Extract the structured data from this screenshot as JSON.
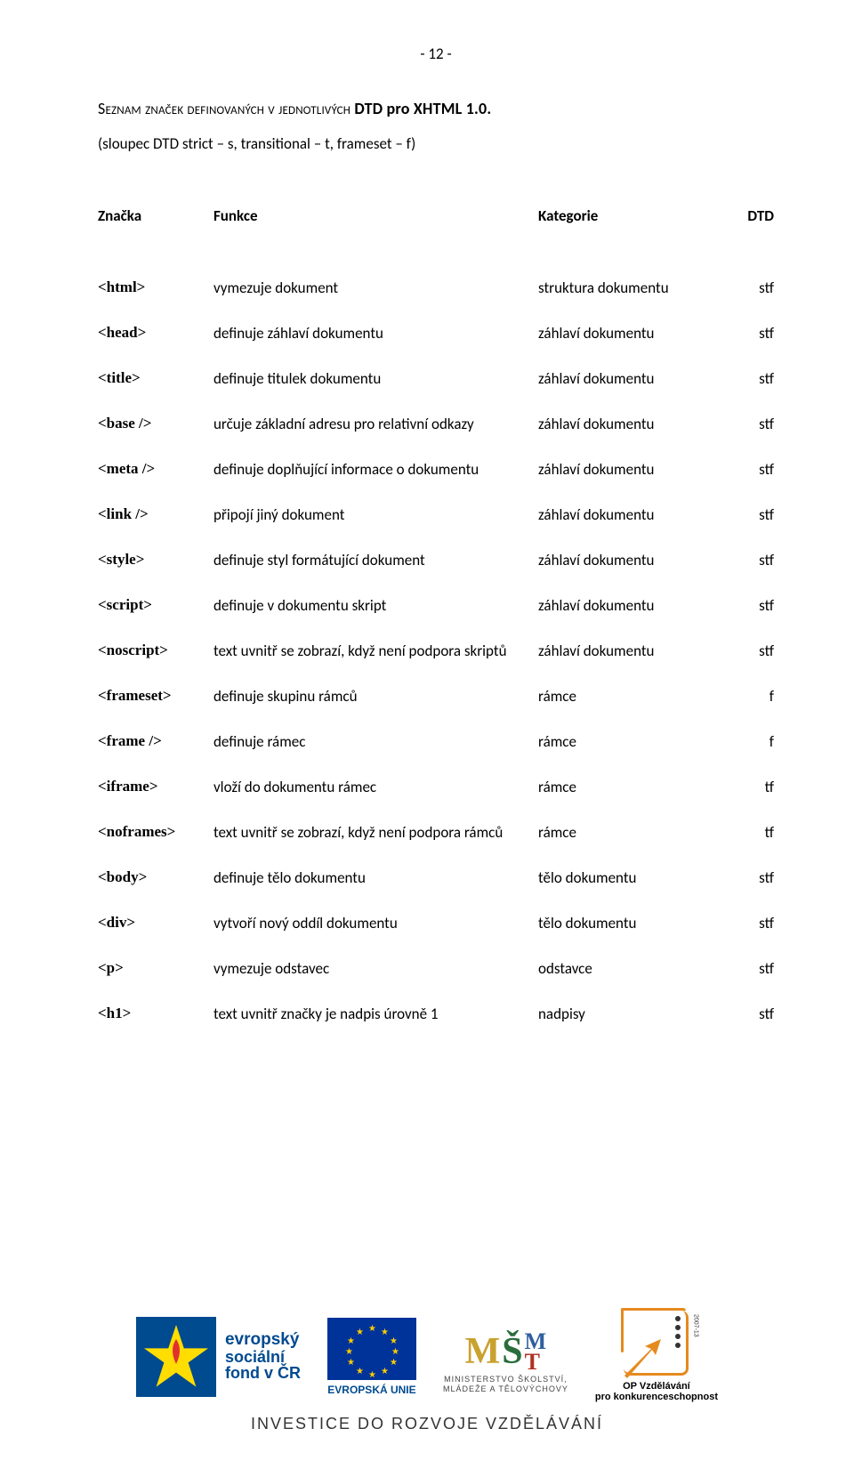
{
  "page_number": "- 12 -",
  "title_prefix": "Seznam značek definovaných v jednotlivých ",
  "title_bold": "DTD pro XHTML 1.0.",
  "subtitle": "(sloupec DTD strict – s, transitional – t, frameset – f)",
  "headers": {
    "tag": "Značka",
    "func": "Funkce",
    "cat": "Kategorie",
    "dtd": "DTD"
  },
  "rows": [
    {
      "tag": "<html>",
      "func": "vymezuje dokument",
      "cat": "struktura dokumentu",
      "dtd": "stf"
    },
    {
      "tag": "<head>",
      "func": "definuje záhlaví dokumentu",
      "cat": "záhlaví dokumentu",
      "dtd": "stf"
    },
    {
      "tag": "<title>",
      "func": "definuje titulek dokumentu",
      "cat": "záhlaví dokumentu",
      "dtd": "stf"
    },
    {
      "tag": "<base />",
      "func": "určuje základní adresu pro relativní odkazy",
      "cat": "záhlaví dokumentu",
      "dtd": "stf"
    },
    {
      "tag": "<meta />",
      "func": "definuje doplňující informace o dokumentu",
      "cat": "záhlaví dokumentu",
      "dtd": "stf"
    },
    {
      "tag": "<link />",
      "func": "připojí jiný dokument",
      "cat": "záhlaví dokumentu",
      "dtd": "stf"
    },
    {
      "tag": "<style>",
      "func": "definuje styl formátující dokument",
      "cat": "záhlaví dokumentu",
      "dtd": "stf"
    },
    {
      "tag": "<script>",
      "func": "definuje v dokumentu skript",
      "cat": "záhlaví dokumentu",
      "dtd": "stf"
    },
    {
      "tag": "<noscript>",
      "func": "text uvnitř se zobrazí, když není podpora skriptů",
      "cat": "záhlaví dokumentu",
      "dtd": "stf"
    },
    {
      "tag": "<frameset>",
      "func": "definuje skupinu rámců",
      "cat": "rámce",
      "dtd": "f"
    },
    {
      "tag": "<frame />",
      "func": "definuje rámec",
      "cat": "rámce",
      "dtd": "f"
    },
    {
      "tag": "<iframe>",
      "func": "vloží do dokumentu rámec",
      "cat": "rámce",
      "dtd": "tf"
    },
    {
      "tag": "<noframes>",
      "func": "text uvnitř se zobrazí, když není podpora rámců",
      "cat": "rámce",
      "dtd": "tf"
    },
    {
      "tag": "<body>",
      "func": "definuje tělo dokumentu",
      "cat": "tělo dokumentu",
      "dtd": "stf"
    },
    {
      "tag": "<div>",
      "func": "vytvoří nový oddíl dokumentu",
      "cat": "tělo dokumentu",
      "dtd": "stf"
    },
    {
      "tag": "<p>",
      "func": "vymezuje odstavec",
      "cat": "odstavce",
      "dtd": "stf"
    },
    {
      "tag": "<h1>",
      "func": "text uvnitř značky je nadpis úrovně 1",
      "cat": "nadpisy",
      "dtd": "stf"
    }
  ],
  "footer": {
    "esf": {
      "l1": "evropský",
      "l2": "sociální",
      "l3": "fond v ČR"
    },
    "eu_label": "EVROPSKÁ UNIE",
    "msmt_line1": "MINISTERSTVO ŠKOLSTVÍ,",
    "msmt_line2": "MLÁDEŽE A TĚLOVÝCHOVY",
    "opvk_line1": "OP Vzdělávání",
    "opvk_line2": "pro konkurenceschopnost",
    "opvk_years": "2007-13",
    "invest": "INVESTICE DO ROZVOJE VZDĚLÁVÁNÍ"
  }
}
